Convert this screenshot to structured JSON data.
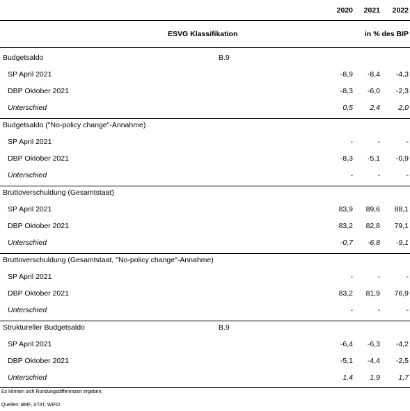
{
  "header": {
    "years": [
      "2020",
      "2021",
      "2022"
    ],
    "esvg_label": "ESVG Klassifikation",
    "unit_label": "in % des BIP"
  },
  "sections": [
    {
      "title": "Budgetsaldo",
      "code": "B.9",
      "rows": [
        {
          "label": "SP April 2021",
          "values": [
            "-8,9",
            "-8,4",
            "-4,3"
          ],
          "italic": false
        },
        {
          "label": "DBP Oktober 2021",
          "values": [
            "-8,3",
            "-6,0",
            "-2,3"
          ],
          "italic": false
        },
        {
          "label": "Unterschied",
          "values": [
            "0,5",
            "2,4",
            "2,0"
          ],
          "italic": true
        }
      ]
    },
    {
      "title": "Budgetsaldo (\"No-policy change\"-Annahme)",
      "code": "",
      "rows": [
        {
          "label": "SP April 2021",
          "values": [
            "-",
            "-",
            "-"
          ],
          "italic": false
        },
        {
          "label": "DBP Oktober 2021",
          "values": [
            "-8,3",
            "-5,1",
            "-0,9"
          ],
          "italic": false
        },
        {
          "label": "Unterschied",
          "values": [
            "-",
            "-",
            "-"
          ],
          "italic": true
        }
      ]
    },
    {
      "title": "Bruttoverschuldung (Gesamtstaat)",
      "code": "",
      "rows": [
        {
          "label": "SP April 2021",
          "values": [
            "83,9",
            "89,6",
            "88,1"
          ],
          "italic": false
        },
        {
          "label": "DBP Oktober 2021",
          "values": [
            "83,2",
            "82,8",
            "79,1"
          ],
          "italic": false
        },
        {
          "label": "Unterschied",
          "values": [
            "-0,7",
            "-6,8",
            "-9,1"
          ],
          "italic": true
        }
      ]
    },
    {
      "title": "Bruttoverschuldung (Gesamtstaat, \"No-policy change\"-Annahme)",
      "code": "",
      "rows": [
        {
          "label": "SP April 2021",
          "values": [
            "-",
            "-",
            "-"
          ],
          "italic": false
        },
        {
          "label": "DBP Oktober 2021",
          "values": [
            "83,2",
            "81,9",
            "76,9"
          ],
          "italic": false
        },
        {
          "label": "Unterschied",
          "values": [
            "-",
            "-",
            "-"
          ],
          "italic": true
        }
      ]
    },
    {
      "title": "Struktureller Budgetsaldo",
      "code": "B.9",
      "rows": [
        {
          "label": "SP April 2021",
          "values": [
            "-6,4",
            "-6,3",
            "-4,2"
          ],
          "italic": false
        },
        {
          "label": "DBP Oktober 2021",
          "values": [
            "-5,1",
            "-4,4",
            "-2,5"
          ],
          "italic": false
        },
        {
          "label": "Unterschied",
          "values": [
            "1,4",
            "1,9",
            "1,7"
          ],
          "italic": true
        }
      ]
    }
  ],
  "footnotes": {
    "note": "Es können sich Rundungsdifferenzen ergeben.",
    "sources": "Quellen: BMF, STAT, WIFO"
  }
}
